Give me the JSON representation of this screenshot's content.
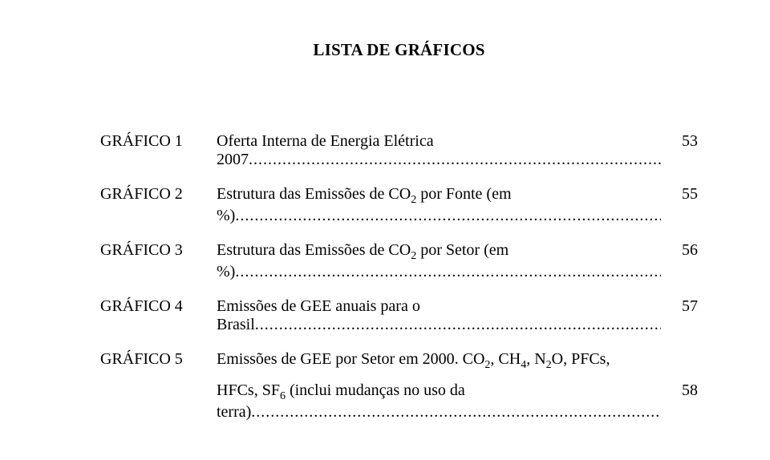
{
  "title": "LISTA DE GRÁFICOS",
  "entries": [
    {
      "label": "GRÁFICO 1",
      "text_html": "Oferta Interna de Energia Elétrica 2007",
      "page": "53"
    },
    {
      "label": "GRÁFICO 2",
      "text_html": "Estrutura das Emissões de CO<sub>2</sub> por Fonte (em %)",
      "page": "55"
    },
    {
      "label": "GRÁFICO 3",
      "text_html": "Estrutura das Emissões de CO<sub>2</sub> por Setor (em %)",
      "page": "56"
    },
    {
      "label": "GRÁFICO 4",
      "text_html": "Emissões de GEE anuais para o Brasil",
      "page": "57"
    },
    {
      "label": "GRÁFICO 5",
      "text_html": "Emissões de GEE por Setor em 2000. CO<sub>2</sub>, CH<sub>4</sub>, N<sub>2</sub>O, PFCs,",
      "page": null,
      "cont_html": "HFCs, SF<sub>6</sub> (inclui mudanças no uso da terra)",
      "cont_page": "58"
    }
  ],
  "colors": {
    "background": "#ffffff",
    "text": "#000000"
  },
  "typography": {
    "font_family": "Times New Roman",
    "title_fontsize_pt": 16,
    "body_fontsize_pt": 15,
    "title_fontweight": "bold"
  }
}
